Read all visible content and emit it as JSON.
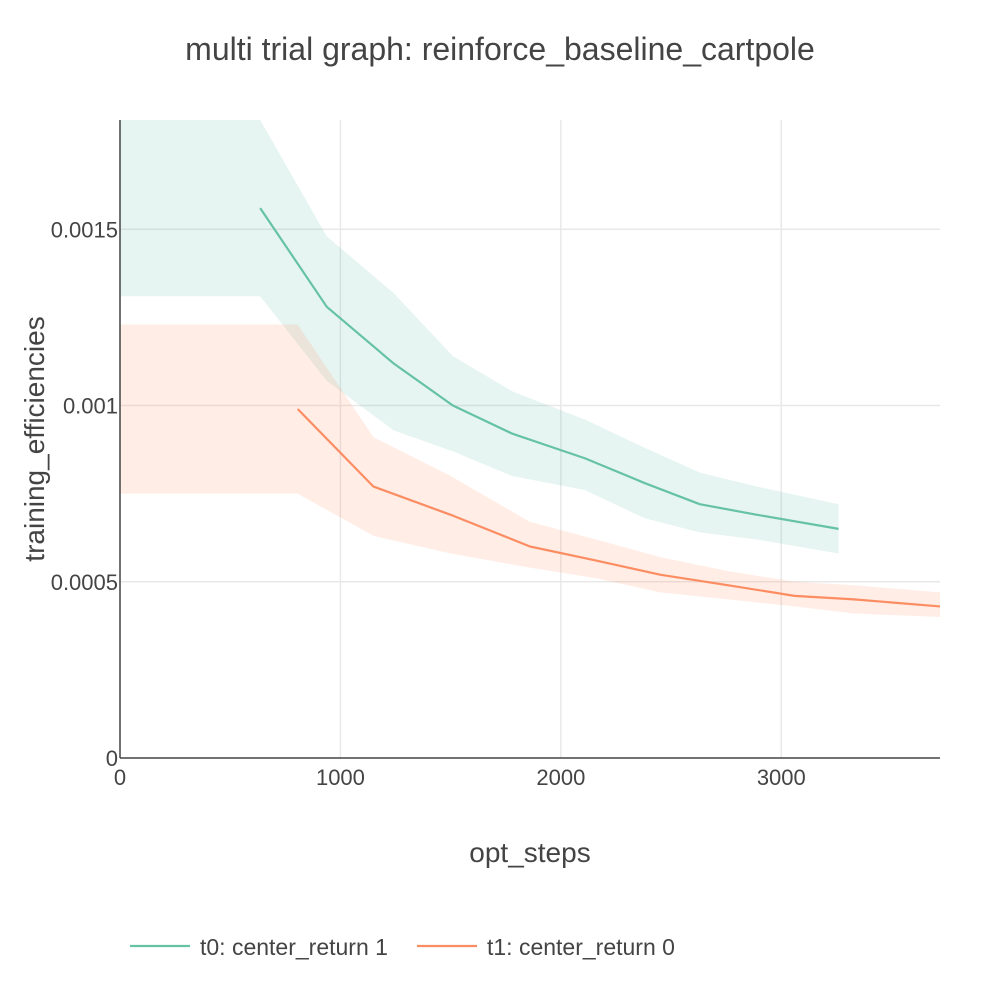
{
  "chart_data": {
    "type": "line",
    "title": "multi trial graph: reinforce_baseline_cartpole",
    "xlabel": "opt_steps",
    "ylabel": "training_efficiencies",
    "xlim": [
      0,
      3720
    ],
    "ylim": [
      0,
      0.00181
    ],
    "x_ticks": [
      0,
      1000,
      2000,
      3000
    ],
    "x_tick_labels": [
      "0",
      "1000",
      "2000",
      "3000"
    ],
    "y_ticks": [
      0,
      0.0005,
      0.001,
      0.0015
    ],
    "y_tick_labels": [
      "0",
      "0.0005",
      "0.001",
      "0.0015"
    ],
    "grid": true,
    "legend_position": "bottom-left",
    "series": [
      {
        "name": "t0: center_return 1",
        "color": "#66c2a5",
        "band_color": "rgba(102,194,165,0.16)",
        "x": [
          636,
          938,
          1240,
          1510,
          1780,
          2110,
          2380,
          2630,
          2890,
          3260
        ],
        "y": [
          0.00156,
          0.00128,
          0.00112,
          0.001,
          0.00092,
          0.00085,
          0.00078,
          0.00072,
          0.00069,
          0.00065
        ],
        "band_upper": [
          0.00182,
          0.00148,
          0.00132,
          0.00114,
          0.00104,
          0.00096,
          0.00088,
          0.00081,
          0.00077,
          0.00072
        ],
        "band_lower": [
          0.00131,
          0.00107,
          0.00093,
          0.00087,
          0.0008,
          0.00076,
          0.00068,
          0.00064,
          0.00062,
          0.00058
        ],
        "band_start": {
          "x": 0,
          "upper": 0.00182,
          "lower": 0.00131
        }
      },
      {
        "name": "t1: center_return 0",
        "color": "#fc8d62",
        "band_color": "rgba(252,141,98,0.16)",
        "x": [
          806,
          1150,
          1500,
          1860,
          2160,
          2450,
          2760,
          3060,
          3330,
          3720
        ],
        "y": [
          0.00099,
          0.00077,
          0.00069,
          0.0006,
          0.00056,
          0.00052,
          0.00049,
          0.00046,
          0.00045,
          0.00043
        ],
        "band_upper": [
          0.00123,
          0.00091,
          0.0008,
          0.00067,
          0.00062,
          0.00057,
          0.00053,
          0.0005,
          0.00049,
          0.00047
        ],
        "band_lower": [
          0.00075,
          0.00063,
          0.00058,
          0.00054,
          0.00051,
          0.00047,
          0.00045,
          0.00043,
          0.00041,
          0.0004
        ],
        "band_start": {
          "x": 0,
          "upper": 0.00123,
          "lower": 0.00075
        }
      }
    ]
  }
}
